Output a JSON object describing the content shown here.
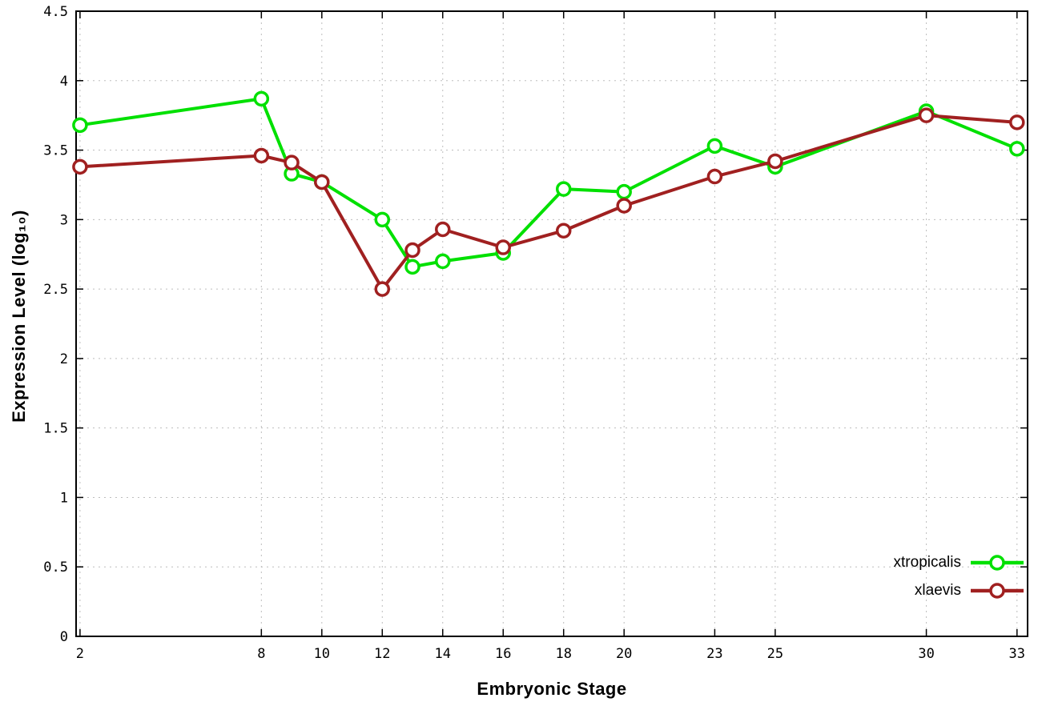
{
  "chart_data": {
    "type": "line",
    "title": "",
    "xlabel": "Embryonic Stage",
    "ylabel": "Expression Level (log10)",
    "ylabel_display": "Expression Level (log₁₀)",
    "xlim": [
      1.87,
      33.35
    ],
    "ylim": [
      0,
      4.5
    ],
    "grid": true,
    "grid_color": "#bdbdbd",
    "axis_color": "#000000",
    "background_color": "#ffffff",
    "marker_style": "open-circle",
    "legend_position": "bottom-right",
    "x": [
      2,
      8,
      9,
      10,
      12,
      13,
      14,
      16,
      18,
      20,
      23,
      25,
      30,
      33
    ],
    "xticks": [
      2,
      8,
      10,
      12,
      14,
      16,
      18,
      20,
      23,
      25,
      30,
      33
    ],
    "yticks": [
      0,
      0.5,
      1,
      1.5,
      2,
      2.5,
      3,
      3.5,
      4,
      4.5
    ],
    "series": [
      {
        "name": "xtropicalis",
        "color": "#00e000",
        "values": [
          3.68,
          3.87,
          3.33,
          3.27,
          3.0,
          2.66,
          2.7,
          2.76,
          3.22,
          3.2,
          3.53,
          3.38,
          3.78,
          3.51
        ]
      },
      {
        "name": "xlaevis",
        "color": "#a02020",
        "values": [
          3.38,
          3.46,
          3.41,
          3.27,
          2.5,
          2.78,
          2.93,
          2.8,
          2.92,
          3.1,
          3.31,
          3.42,
          3.75,
          3.7
        ]
      }
    ]
  }
}
